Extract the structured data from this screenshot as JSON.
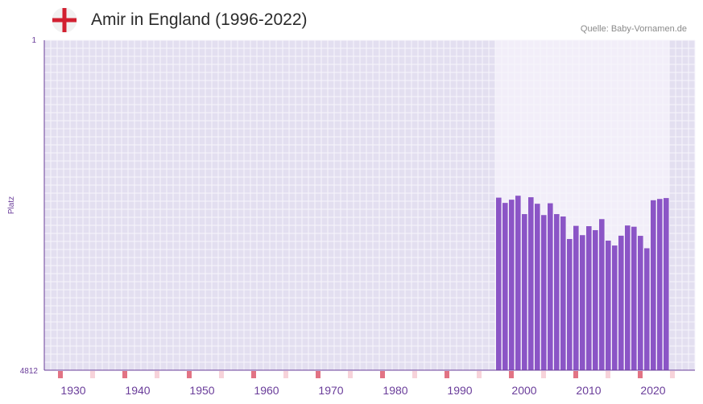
{
  "header": {
    "title": "Amir in England (1996-2022)",
    "source": "Quelle: Baby-Vornamen.de",
    "flag_icon": "england-flag-icon"
  },
  "colors": {
    "bar": "#8b55c6",
    "background": "#e3dff0",
    "highlight_range": "#f2eef9",
    "grid": "#f7f5fb",
    "axis": "#6a3d9a",
    "marker_decade": "#e27384",
    "marker_mid": "#f7d3da",
    "flag_red": "#d22030"
  },
  "chart_data": {
    "type": "bar",
    "title": "Amir in England (1996-2022)",
    "ylabel": "Platz",
    "xlabel": "",
    "y_inverted": true,
    "ylim": [
      1,
      4812
    ],
    "y_tick_labels": [
      "1",
      "4812"
    ],
    "xlim": [
      1926,
      2027
    ],
    "x_ticks": [
      1930,
      1940,
      1950,
      1960,
      1970,
      1980,
      1990,
      2000,
      2010,
      2020
    ],
    "x_tick_labels": [
      "1930",
      "1940",
      "1950",
      "1960",
      "1970",
      "1980",
      "1990",
      "2000",
      "2010",
      "2020"
    ],
    "highlight_range": [
      1996,
      2022
    ],
    "x": [
      1996,
      1997,
      1998,
      1999,
      2000,
      2001,
      2002,
      2003,
      2004,
      2005,
      2006,
      2007,
      2008,
      2009,
      2010,
      2011,
      2012,
      2013,
      2014,
      2015,
      2016,
      2017,
      2018,
      2019,
      2020,
      2021,
      2022
    ],
    "values": [
      2296,
      2373,
      2326,
      2268,
      2536,
      2290,
      2385,
      2550,
      2378,
      2536,
      2571,
      2899,
      2707,
      2843,
      2712,
      2770,
      2609,
      2923,
      2994,
      2851,
      2702,
      2720,
      2853,
      3034,
      2334,
      2315,
      2302
    ]
  }
}
